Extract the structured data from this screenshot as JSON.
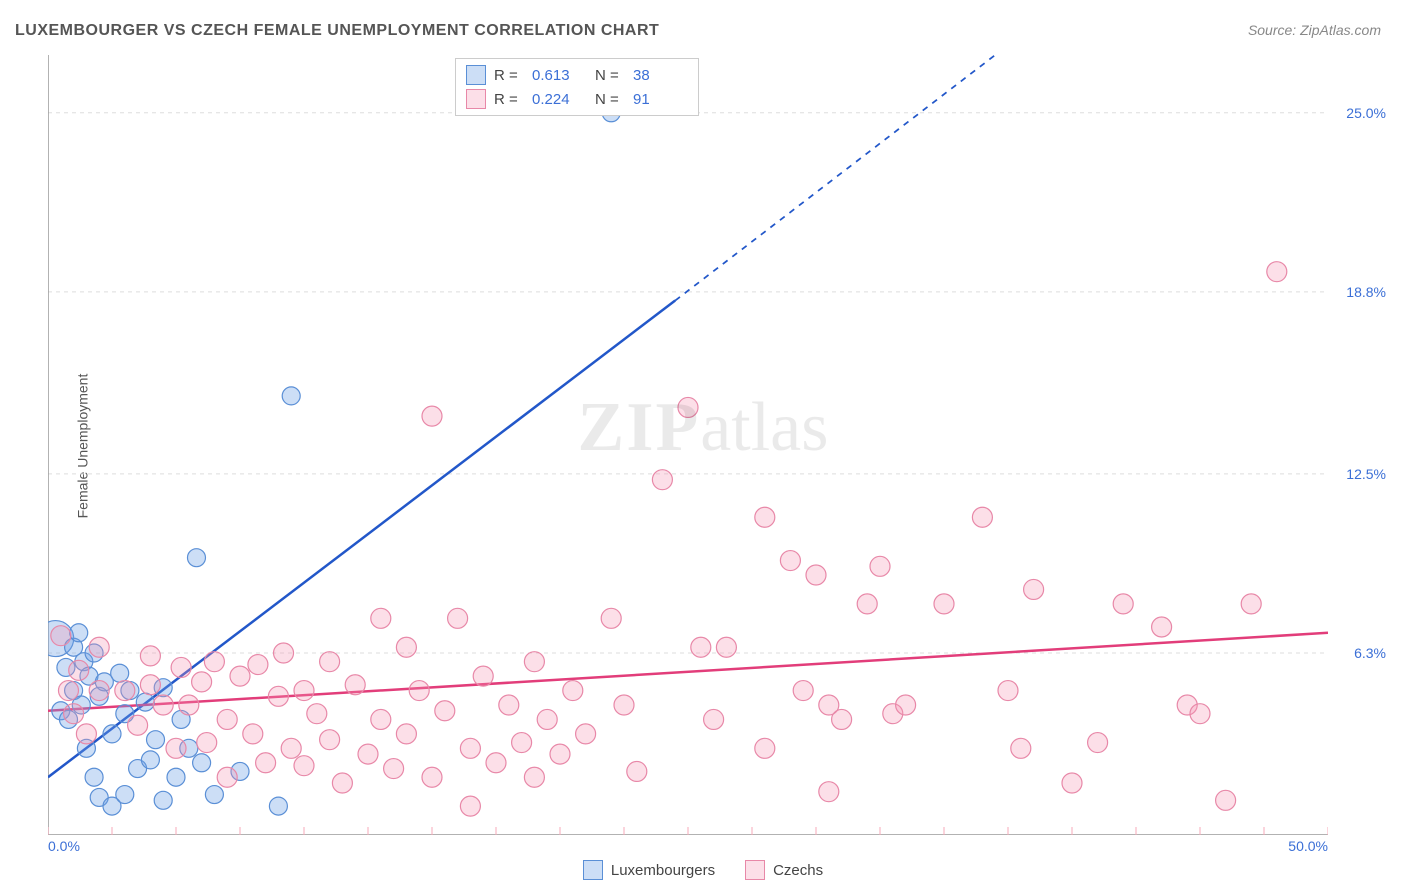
{
  "chart": {
    "type": "scatter",
    "title": "LUXEMBOURGER VS CZECH FEMALE UNEMPLOYMENT CORRELATION CHART",
    "source": "Source: ZipAtlas.com",
    "ylabel": "Female Unemployment",
    "watermark_bold": "ZIP",
    "watermark_rest": "atlas",
    "background_color": "#ffffff",
    "grid_color": "#dddddd",
    "axis_color": "#999999",
    "tick_color": "#f7a8b8",
    "label_color": "#3b6fd6",
    "xlim": [
      0,
      50
    ],
    "ylim": [
      0,
      27
    ],
    "x_ticks_minor_step": 2.5,
    "x_labels": {
      "min": "0.0%",
      "max": "50.0%"
    },
    "y_gridlines": [
      {
        "value": 6.3,
        "label": "6.3%"
      },
      {
        "value": 12.5,
        "label": "12.5%"
      },
      {
        "value": 18.8,
        "label": "18.8%"
      },
      {
        "value": 25.0,
        "label": "25.0%"
      }
    ],
    "series": [
      {
        "name": "Luxembourgers",
        "color_fill": "rgba(110,160,230,0.35)",
        "color_stroke": "#5a8fd6",
        "marker_radius": 9,
        "regression": {
          "R": "0.613",
          "N": "38",
          "line_color": "#2257c9",
          "line_width": 2.5,
          "x1": 0,
          "y1": 2.0,
          "x_solid_end": 24.5,
          "y_solid_end": 18.5,
          "x2": 37,
          "y2": 27
        },
        "points": [
          {
            "x": 0.3,
            "y": 6.8,
            "r": 18
          },
          {
            "x": 0.5,
            "y": 4.3
          },
          {
            "x": 0.7,
            "y": 5.8
          },
          {
            "x": 0.8,
            "y": 4.0
          },
          {
            "x": 1.0,
            "y": 6.5
          },
          {
            "x": 1.0,
            "y": 5.0
          },
          {
            "x": 1.2,
            "y": 7.0
          },
          {
            "x": 1.3,
            "y": 4.5
          },
          {
            "x": 1.4,
            "y": 6.0
          },
          {
            "x": 1.5,
            "y": 3.0
          },
          {
            "x": 1.6,
            "y": 5.5
          },
          {
            "x": 1.8,
            "y": 6.3
          },
          {
            "x": 1.8,
            "y": 2.0
          },
          {
            "x": 2.0,
            "y": 4.8
          },
          {
            "x": 2.0,
            "y": 1.3
          },
          {
            "x": 2.2,
            "y": 5.3
          },
          {
            "x": 2.5,
            "y": 3.5
          },
          {
            "x": 2.5,
            "y": 1.0
          },
          {
            "x": 2.8,
            "y": 5.6
          },
          {
            "x": 3.0,
            "y": 4.2
          },
          {
            "x": 3.0,
            "y": 1.4
          },
          {
            "x": 3.2,
            "y": 5.0
          },
          {
            "x": 3.5,
            "y": 2.3
          },
          {
            "x": 3.8,
            "y": 4.6
          },
          {
            "x": 4.0,
            "y": 2.6
          },
          {
            "x": 4.2,
            "y": 3.3
          },
          {
            "x": 4.5,
            "y": 5.1
          },
          {
            "x": 4.5,
            "y": 1.2
          },
          {
            "x": 5.0,
            "y": 2.0
          },
          {
            "x": 5.2,
            "y": 4.0
          },
          {
            "x": 5.5,
            "y": 3.0
          },
          {
            "x": 5.8,
            "y": 9.6
          },
          {
            "x": 6.0,
            "y": 2.5
          },
          {
            "x": 6.5,
            "y": 1.4
          },
          {
            "x": 7.5,
            "y": 2.2
          },
          {
            "x": 9.0,
            "y": 1.0
          },
          {
            "x": 9.5,
            "y": 15.2
          },
          {
            "x": 22.0,
            "y": 25.0
          }
        ]
      },
      {
        "name": "Czechs",
        "color_fill": "rgba(245,150,180,0.30)",
        "color_stroke": "#e888a8",
        "marker_radius": 10,
        "regression": {
          "R": "0.224",
          "N": "91",
          "line_color": "#e23d7a",
          "line_width": 2.5,
          "x1": 0,
          "y1": 4.3,
          "x_solid_end": 50,
          "y_solid_end": 7.0,
          "x2": 50,
          "y2": 7.0
        },
        "points": [
          {
            "x": 0.5,
            "y": 6.9
          },
          {
            "x": 0.8,
            "y": 5.0
          },
          {
            "x": 1.0,
            "y": 4.2
          },
          {
            "x": 1.2,
            "y": 5.7
          },
          {
            "x": 1.5,
            "y": 3.5
          },
          {
            "x": 2.0,
            "y": 5.0
          },
          {
            "x": 2.0,
            "y": 6.5
          },
          {
            "x": 3.0,
            "y": 5.0
          },
          {
            "x": 3.5,
            "y": 3.8
          },
          {
            "x": 4.0,
            "y": 5.2
          },
          {
            "x": 4.0,
            "y": 6.2
          },
          {
            "x": 4.5,
            "y": 4.5
          },
          {
            "x": 5.0,
            "y": 3.0
          },
          {
            "x": 5.2,
            "y": 5.8
          },
          {
            "x": 5.5,
            "y": 4.5
          },
          {
            "x": 6.0,
            "y": 5.3
          },
          {
            "x": 6.2,
            "y": 3.2
          },
          {
            "x": 6.5,
            "y": 6.0
          },
          {
            "x": 7.0,
            "y": 4.0
          },
          {
            "x": 7.0,
            "y": 2.0
          },
          {
            "x": 7.5,
            "y": 5.5
          },
          {
            "x": 8.0,
            "y": 3.5
          },
          {
            "x": 8.2,
            "y": 5.9
          },
          {
            "x": 8.5,
            "y": 2.5
          },
          {
            "x": 9.0,
            "y": 4.8
          },
          {
            "x": 9.2,
            "y": 6.3
          },
          {
            "x": 9.5,
            "y": 3.0
          },
          {
            "x": 10.0,
            "y": 5.0
          },
          {
            "x": 10.0,
            "y": 2.4
          },
          {
            "x": 10.5,
            "y": 4.2
          },
          {
            "x": 11.0,
            "y": 6.0
          },
          {
            "x": 11.0,
            "y": 3.3
          },
          {
            "x": 11.5,
            "y": 1.8
          },
          {
            "x": 12.0,
            "y": 5.2
          },
          {
            "x": 12.5,
            "y": 2.8
          },
          {
            "x": 13.0,
            "y": 7.5
          },
          {
            "x": 13.0,
            "y": 4.0
          },
          {
            "x": 13.5,
            "y": 2.3
          },
          {
            "x": 14.0,
            "y": 6.5
          },
          {
            "x": 14.0,
            "y": 3.5
          },
          {
            "x": 14.5,
            "y": 5.0
          },
          {
            "x": 15.0,
            "y": 14.5
          },
          {
            "x": 15.0,
            "y": 2.0
          },
          {
            "x": 15.5,
            "y": 4.3
          },
          {
            "x": 16.0,
            "y": 7.5
          },
          {
            "x": 16.5,
            "y": 3.0
          },
          {
            "x": 16.5,
            "y": 1.0
          },
          {
            "x": 17.0,
            "y": 5.5
          },
          {
            "x": 17.5,
            "y": 2.5
          },
          {
            "x": 18.0,
            "y": 4.5
          },
          {
            "x": 18.5,
            "y": 3.2
          },
          {
            "x": 19.0,
            "y": 6.0
          },
          {
            "x": 19.0,
            "y": 2.0
          },
          {
            "x": 19.5,
            "y": 4.0
          },
          {
            "x": 20.0,
            "y": 2.8
          },
          {
            "x": 20.5,
            "y": 5.0
          },
          {
            "x": 21.0,
            "y": 3.5
          },
          {
            "x": 22.0,
            "y": 7.5
          },
          {
            "x": 22.5,
            "y": 4.5
          },
          {
            "x": 23.0,
            "y": 2.2
          },
          {
            "x": 24.0,
            "y": 12.3
          },
          {
            "x": 25.0,
            "y": 14.8
          },
          {
            "x": 25.5,
            "y": 6.5
          },
          {
            "x": 26.0,
            "y": 4.0
          },
          {
            "x": 26.5,
            "y": 6.5
          },
          {
            "x": 28.0,
            "y": 11.0
          },
          {
            "x": 28.0,
            "y": 3.0
          },
          {
            "x": 29.0,
            "y": 9.5
          },
          {
            "x": 29.5,
            "y": 5.0
          },
          {
            "x": 30.0,
            "y": 9.0
          },
          {
            "x": 30.5,
            "y": 4.5
          },
          {
            "x": 30.5,
            "y": 1.5
          },
          {
            "x": 31.0,
            "y": 4.0
          },
          {
            "x": 32.0,
            "y": 8.0
          },
          {
            "x": 32.5,
            "y": 9.3
          },
          {
            "x": 33.0,
            "y": 4.2
          },
          {
            "x": 33.5,
            "y": 4.5
          },
          {
            "x": 35.0,
            "y": 8.0
          },
          {
            "x": 36.5,
            "y": 11.0
          },
          {
            "x": 37.5,
            "y": 5.0
          },
          {
            "x": 38.0,
            "y": 3.0
          },
          {
            "x": 38.5,
            "y": 8.5
          },
          {
            "x": 40.0,
            "y": 1.8
          },
          {
            "x": 41.0,
            "y": 3.2
          },
          {
            "x": 42.0,
            "y": 8.0
          },
          {
            "x": 43.5,
            "y": 7.2
          },
          {
            "x": 44.5,
            "y": 4.5
          },
          {
            "x": 45.0,
            "y": 4.2
          },
          {
            "x": 46.0,
            "y": 1.2
          },
          {
            "x": 47.0,
            "y": 8.0
          },
          {
            "x": 48.0,
            "y": 19.5
          }
        ]
      }
    ]
  }
}
